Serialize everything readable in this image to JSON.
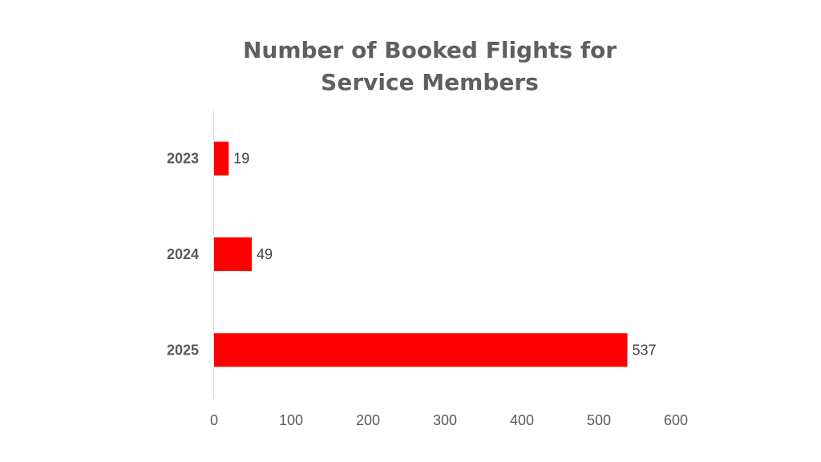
{
  "chart_data": {
    "type": "bar",
    "orientation": "horizontal",
    "title": [
      "Number of Booked Flights for",
      "Service Members"
    ],
    "categories": [
      "2023",
      "2024",
      "2025"
    ],
    "values": [
      19,
      49,
      537
    ],
    "xlim": [
      0,
      600
    ],
    "x_ticks": [
      0,
      100,
      200,
      300,
      400,
      500,
      600
    ],
    "xlabel": "",
    "ylabel": "",
    "grid": false,
    "legend": "none",
    "bar_color": "#ff0000",
    "axis_color": "#d9d9d9"
  }
}
